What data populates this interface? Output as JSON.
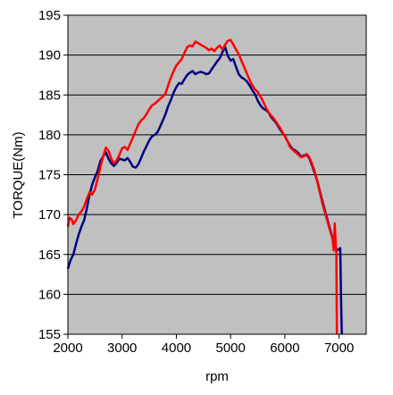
{
  "chart_data": {
    "type": "line",
    "title": "",
    "xlabel": "rpm",
    "ylabel": "TORQUE(Nm)",
    "xlim": [
      2000,
      7500
    ],
    "ylim": [
      155,
      195
    ],
    "x_ticks": [
      2000,
      3000,
      4000,
      5000,
      6000,
      7000
    ],
    "x_tick_labels": [
      "2000",
      "3000",
      "4000",
      "5000",
      "6000",
      "7000"
    ],
    "y_ticks": [
      155,
      160,
      165,
      170,
      175,
      180,
      185,
      190,
      195
    ],
    "y_tick_labels": [
      "155",
      "160",
      "165",
      "170",
      "175",
      "180",
      "185",
      "190",
      "195"
    ],
    "grid": "horizontal",
    "plot_background": "#c0c0c0",
    "legend": "none",
    "series": [
      {
        "color": "#000080",
        "points": [
          [
            2000,
            163.2
          ],
          [
            2050,
            164.3
          ],
          [
            2100,
            165.0
          ],
          [
            2150,
            166.3
          ],
          [
            2200,
            167.5
          ],
          [
            2250,
            168.5
          ],
          [
            2300,
            169.3
          ],
          [
            2350,
            170.8
          ],
          [
            2400,
            172.5
          ],
          [
            2450,
            173.8
          ],
          [
            2500,
            174.7
          ],
          [
            2550,
            175.5
          ],
          [
            2600,
            176.7
          ],
          [
            2650,
            177.3
          ],
          [
            2700,
            177.8
          ],
          [
            2750,
            177.0
          ],
          [
            2800,
            176.4
          ],
          [
            2850,
            176.1
          ],
          [
            2900,
            176.5
          ],
          [
            2950,
            177.0
          ],
          [
            3000,
            176.9
          ],
          [
            3050,
            176.8
          ],
          [
            3100,
            177.1
          ],
          [
            3150,
            176.6
          ],
          [
            3200,
            176.0
          ],
          [
            3250,
            175.9
          ],
          [
            3300,
            176.3
          ],
          [
            3350,
            177.1
          ],
          [
            3400,
            177.9
          ],
          [
            3450,
            178.6
          ],
          [
            3500,
            179.3
          ],
          [
            3550,
            179.8
          ],
          [
            3600,
            180.0
          ],
          [
            3650,
            180.3
          ],
          [
            3700,
            181.0
          ],
          [
            3750,
            181.8
          ],
          [
            3800,
            182.6
          ],
          [
            3850,
            183.6
          ],
          [
            3900,
            184.4
          ],
          [
            3950,
            185.3
          ],
          [
            4000,
            186.0
          ],
          [
            4050,
            186.5
          ],
          [
            4100,
            186.4
          ],
          [
            4150,
            187.0
          ],
          [
            4200,
            187.5
          ],
          [
            4250,
            187.8
          ],
          [
            4300,
            188.0
          ],
          [
            4350,
            187.6
          ],
          [
            4400,
            187.8
          ],
          [
            4450,
            187.9
          ],
          [
            4500,
            187.8
          ],
          [
            4550,
            187.6
          ],
          [
            4600,
            187.7
          ],
          [
            4650,
            188.2
          ],
          [
            4700,
            188.7
          ],
          [
            4750,
            189.2
          ],
          [
            4800,
            189.6
          ],
          [
            4850,
            190.4
          ],
          [
            4900,
            191.0
          ],
          [
            4950,
            189.9
          ],
          [
            5000,
            189.3
          ],
          [
            5050,
            189.5
          ],
          [
            5100,
            188.5
          ],
          [
            5150,
            187.6
          ],
          [
            5200,
            187.2
          ],
          [
            5250,
            187.0
          ],
          [
            5300,
            186.7
          ],
          [
            5350,
            186.2
          ],
          [
            5400,
            185.6
          ],
          [
            5450,
            185.1
          ],
          [
            5500,
            184.3
          ],
          [
            5550,
            183.7
          ],
          [
            5600,
            183.3
          ],
          [
            5650,
            183.1
          ],
          [
            5700,
            182.8
          ],
          [
            5750,
            182.2
          ],
          [
            5800,
            181.8
          ],
          [
            5850,
            181.4
          ],
          [
            5900,
            180.8
          ],
          [
            5950,
            180.3
          ],
          [
            6000,
            179.9
          ],
          [
            6050,
            179.2
          ],
          [
            6100,
            178.6
          ],
          [
            6150,
            178.2
          ],
          [
            6200,
            178.0
          ],
          [
            6250,
            177.7
          ],
          [
            6300,
            177.3
          ],
          [
            6350,
            177.4
          ],
          [
            6400,
            177.5
          ],
          [
            6450,
            177.1
          ],
          [
            6500,
            176.2
          ],
          [
            6550,
            175.2
          ],
          [
            6600,
            174.2
          ],
          [
            6650,
            172.8
          ],
          [
            6700,
            171.5
          ],
          [
            6750,
            170.2
          ],
          [
            6800,
            169.0
          ],
          [
            6850,
            167.8
          ],
          [
            6900,
            166.5
          ],
          [
            6950,
            165.6
          ],
          [
            7000,
            165.6
          ],
          [
            7020,
            165.8
          ],
          [
            7040,
            158.0
          ],
          [
            7050,
            155.0
          ]
        ]
      },
      {
        "color": "#ff0000",
        "points": [
          [
            2000,
            168.5
          ],
          [
            2030,
            169.6
          ],
          [
            2070,
            169.4
          ],
          [
            2100,
            168.8
          ],
          [
            2150,
            169.3
          ],
          [
            2200,
            170.0
          ],
          [
            2250,
            170.4
          ],
          [
            2300,
            171.0
          ],
          [
            2350,
            172.0
          ],
          [
            2400,
            172.8
          ],
          [
            2450,
            172.5
          ],
          [
            2500,
            173.2
          ],
          [
            2550,
            174.5
          ],
          [
            2600,
            176.0
          ],
          [
            2650,
            177.3
          ],
          [
            2700,
            178.4
          ],
          [
            2750,
            178.0
          ],
          [
            2800,
            177.0
          ],
          [
            2850,
            176.4
          ],
          [
            2900,
            176.8
          ],
          [
            2950,
            177.5
          ],
          [
            3000,
            178.3
          ],
          [
            3050,
            178.5
          ],
          [
            3100,
            178.1
          ],
          [
            3150,
            178.9
          ],
          [
            3200,
            179.7
          ],
          [
            3250,
            180.5
          ],
          [
            3300,
            181.3
          ],
          [
            3350,
            181.8
          ],
          [
            3400,
            182.1
          ],
          [
            3450,
            182.6
          ],
          [
            3500,
            183.2
          ],
          [
            3550,
            183.7
          ],
          [
            3600,
            183.9
          ],
          [
            3650,
            184.2
          ],
          [
            3700,
            184.5
          ],
          [
            3750,
            184.8
          ],
          [
            3800,
            185.2
          ],
          [
            3850,
            186.2
          ],
          [
            3900,
            187.2
          ],
          [
            3950,
            188.0
          ],
          [
            4000,
            188.7
          ],
          [
            4050,
            189.1
          ],
          [
            4100,
            189.5
          ],
          [
            4150,
            190.3
          ],
          [
            4200,
            191.0
          ],
          [
            4250,
            191.2
          ],
          [
            4300,
            191.1
          ],
          [
            4350,
            191.7
          ],
          [
            4400,
            191.5
          ],
          [
            4450,
            191.3
          ],
          [
            4500,
            191.1
          ],
          [
            4550,
            190.9
          ],
          [
            4600,
            190.6
          ],
          [
            4650,
            190.8
          ],
          [
            4700,
            190.5
          ],
          [
            4750,
            190.9
          ],
          [
            4800,
            191.2
          ],
          [
            4850,
            190.7
          ],
          [
            4900,
            191.3
          ],
          [
            4950,
            191.8
          ],
          [
            5000,
            191.9
          ],
          [
            5050,
            191.3
          ],
          [
            5100,
            190.7
          ],
          [
            5150,
            190.1
          ],
          [
            5200,
            189.3
          ],
          [
            5250,
            188.5
          ],
          [
            5300,
            187.7
          ],
          [
            5350,
            186.9
          ],
          [
            5400,
            186.2
          ],
          [
            5450,
            185.7
          ],
          [
            5500,
            185.4
          ],
          [
            5550,
            184.8
          ],
          [
            5600,
            184.2
          ],
          [
            5650,
            183.4
          ],
          [
            5700,
            182.8
          ],
          [
            5750,
            182.4
          ],
          [
            5800,
            182.0
          ],
          [
            5850,
            181.5
          ],
          [
            5900,
            181.0
          ],
          [
            5950,
            180.4
          ],
          [
            6000,
            179.8
          ],
          [
            6050,
            179.2
          ],
          [
            6100,
            178.4
          ],
          [
            6150,
            178.1
          ],
          [
            6200,
            177.8
          ],
          [
            6250,
            177.5
          ],
          [
            6300,
            177.2
          ],
          [
            6350,
            177.3
          ],
          [
            6400,
            177.6
          ],
          [
            6450,
            177.2
          ],
          [
            6500,
            176.4
          ],
          [
            6550,
            175.4
          ],
          [
            6600,
            174.1
          ],
          [
            6650,
            172.6
          ],
          [
            6700,
            171.2
          ],
          [
            6750,
            170.0
          ],
          [
            6800,
            168.8
          ],
          [
            6850,
            167.6
          ],
          [
            6880,
            167.0
          ],
          [
            6900,
            165.5
          ],
          [
            6920,
            168.9
          ],
          [
            6940,
            166.0
          ],
          [
            6950,
            165.2
          ],
          [
            6960,
            155.0
          ]
        ]
      }
    ]
  }
}
